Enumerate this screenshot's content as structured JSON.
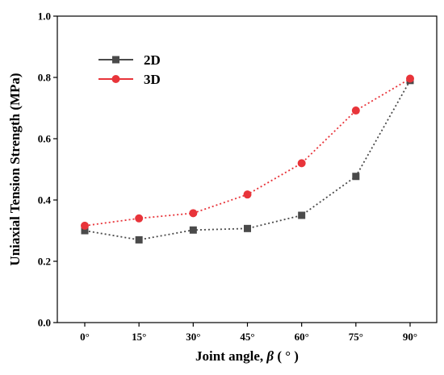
{
  "chart_data": {
    "type": "line",
    "categories": [
      "0°",
      "15°",
      "30°",
      "45°",
      "60°",
      "75°",
      "90°"
    ],
    "series": [
      {
        "name": "2D",
        "values": [
          0.3,
          0.27,
          0.302,
          0.307,
          0.35,
          0.477,
          0.79
        ],
        "color": "#4a4a4a",
        "marker": "square",
        "line_style": "dotted"
      },
      {
        "name": "3D",
        "values": [
          0.316,
          0.34,
          0.357,
          0.418,
          0.52,
          0.692,
          0.796
        ],
        "color": "#e8343a",
        "marker": "circle",
        "line_style": "dotted"
      }
    ],
    "y_ticks": [
      "0.0",
      "0.2",
      "0.4",
      "0.6",
      "0.8",
      "1.0"
    ],
    "xlabel": "Joint angle, β (°)",
    "xlabel_parts": {
      "prefix": "Joint angle, ",
      "symbol": "β",
      "suffix": " ( ° )"
    },
    "ylabel": "Uniaxial Tension Strength (MPa)",
    "ylim": [
      0,
      1.0
    ],
    "grid": false,
    "legend_position": "top-left"
  }
}
